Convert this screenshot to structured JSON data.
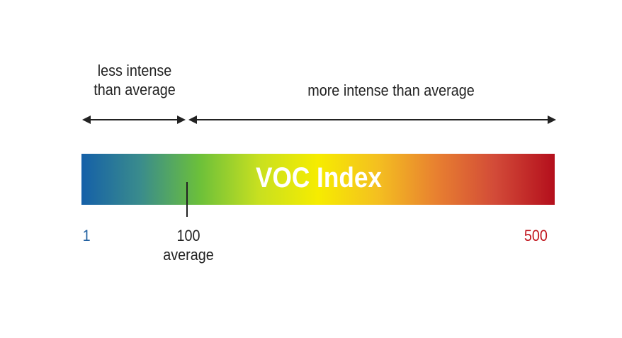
{
  "left_label": {
    "line1": "less intense",
    "line2": "than average"
  },
  "right_label": "more intense than average",
  "bar_title": "VOC  Index",
  "scale": {
    "min": "1",
    "average_value": "100",
    "average_label": "average",
    "max": "500"
  },
  "colors": {
    "min_text": "#1f5fa0",
    "max_text": "#c0141c",
    "gradient": [
      "#1560a8",
      "#3a8c8c",
      "#6cc03a",
      "#c8e020",
      "#f6ec00",
      "#f4c020",
      "#e88030",
      "#d24a38",
      "#b40f1c"
    ]
  }
}
